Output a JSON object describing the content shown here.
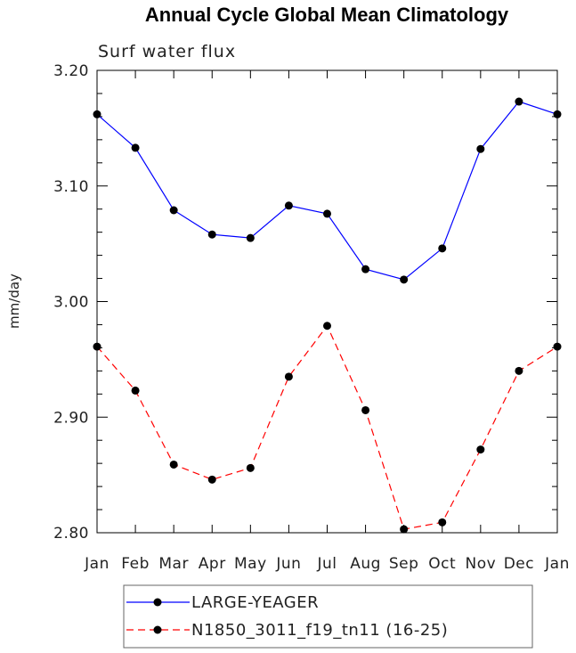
{
  "chart_data": {
    "type": "line",
    "title": "Annual Cycle Global Mean Climatology",
    "subtitle": "Surf water flux",
    "ylabel": "mm/day",
    "xlabel": "",
    "categories": [
      "Jan",
      "Feb",
      "Mar",
      "Apr",
      "May",
      "Jun",
      "Jul",
      "Aug",
      "Sep",
      "Oct",
      "Nov",
      "Dec",
      "Jan"
    ],
    "ylim": [
      2.8,
      3.2
    ],
    "yticks": [
      "2.80",
      "2.90",
      "3.00",
      "3.10",
      "3.20"
    ],
    "grid": false,
    "legend_position": "bottom-left",
    "series": [
      {
        "name": "LARGE-YEAGER",
        "color": "#0000ff",
        "dashed": false,
        "values": [
          3.162,
          3.133,
          3.079,
          3.058,
          3.055,
          3.083,
          3.076,
          3.028,
          3.019,
          3.046,
          3.132,
          3.173,
          3.162
        ]
      },
      {
        "name": "N1850_3011_f19_tn11 (16-25)",
        "color": "#ff0000",
        "dashed": true,
        "values": [
          2.961,
          2.923,
          2.859,
          2.846,
          2.856,
          2.935,
          2.979,
          2.906,
          2.803,
          2.809,
          2.872,
          2.94,
          2.961
        ]
      }
    ]
  }
}
